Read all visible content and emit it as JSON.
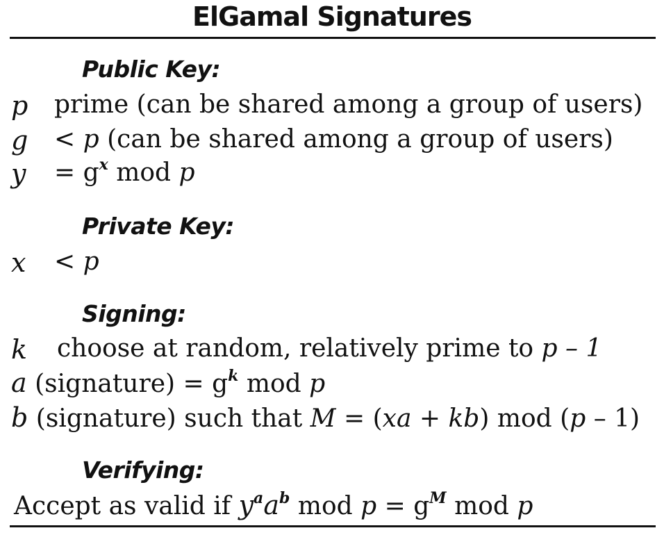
{
  "title": "ElGamal Signatures",
  "sections": {
    "public_key": {
      "heading": "Public Key:",
      "p_var": "p",
      "p_desc": "prime (can be shared among a group of users)",
      "g_var": "g",
      "g_lt": "<",
      "g_p": "p",
      "g_desc": "(can be shared among a group of users)",
      "y_var": "y",
      "y_eq": "= g",
      "y_exp": "x",
      "y_mod": "mod",
      "y_p": "p"
    },
    "private_key": {
      "heading": "Private Key:",
      "x_var": "x",
      "x_lt": "<",
      "x_p": "p"
    },
    "signing": {
      "heading": "Signing:",
      "k_var": "k",
      "k_desc": "choose at random, relatively prime to",
      "k_expr": "p – 1",
      "a_var": "a",
      "a_desc": "(signature) = g",
      "a_exp": "k",
      "a_mod": "mod",
      "a_p": "p",
      "b_var": "b",
      "b_desc": "(signature) such that",
      "b_m": "M",
      "b_eq": "= (",
      "b_xa": "xa",
      "b_plus": "+",
      "b_kb": "kb",
      "b_close": ") mod (",
      "b_p": "p",
      "b_end": "– 1)"
    },
    "verifying": {
      "heading": "Verifying:",
      "text": "Accept as valid if",
      "y": "y",
      "y_exp": "a",
      "a": "a",
      "a_exp": "b",
      "mod1": "mod",
      "p1": "p",
      "eq": "= g",
      "g_exp": "M",
      "mod2": "mod",
      "p2": "p"
    }
  }
}
